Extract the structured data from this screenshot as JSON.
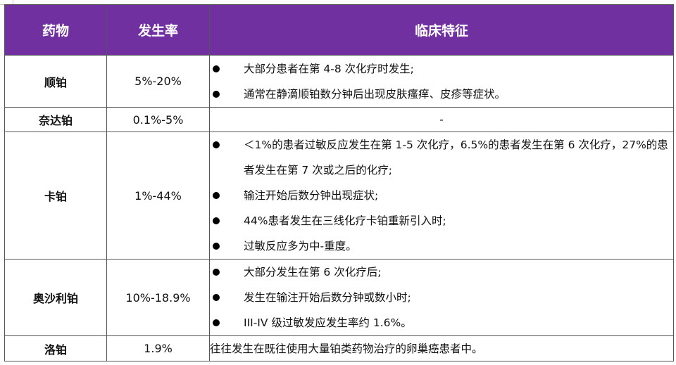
{
  "table": {
    "headers": {
      "drug": "药物",
      "incidence": "发生率",
      "clinical_features": "临床特征"
    },
    "header_color": "#7030a0",
    "rows": [
      {
        "drug": "顺铂",
        "incidence": "5%-20%",
        "features": [
          "大部分患者在第 4-8 次化疗时发生;",
          "通常在静滴顺铂数分钟后出现皮肤瘙痒、皮疹等症状。"
        ]
      },
      {
        "drug": "奈达铂",
        "incidence": "0.1%-5%",
        "features_text": "-"
      },
      {
        "drug": "卡铂",
        "incidence": "1%-44%",
        "features": [
          "＜1%的患者过敏反应发生在第 1-5 次化疗，6.5%的患者发生在第 6 次化疗，27%的患者发生在第 7 次或之后的化疗;",
          "输注开始后数分钟出现症状;",
          "44%患者发生在三线化疗卡铂重新引入时;",
          "过敏反应多为中-重度。"
        ]
      },
      {
        "drug": "奥沙利铂",
        "incidence": "10%-18.9%",
        "features": [
          "大部分发生在第 6 次化疗后;",
          "发生在输注开始后数分钟或数小时;",
          "III-IV 级过敏发应发生率约 1.6%。"
        ]
      },
      {
        "drug": "洛铂",
        "incidence": "1.9%",
        "features_text": "往往发生在既往使用大量铂类药物治疗的卵巢癌患者中。"
      }
    ]
  }
}
